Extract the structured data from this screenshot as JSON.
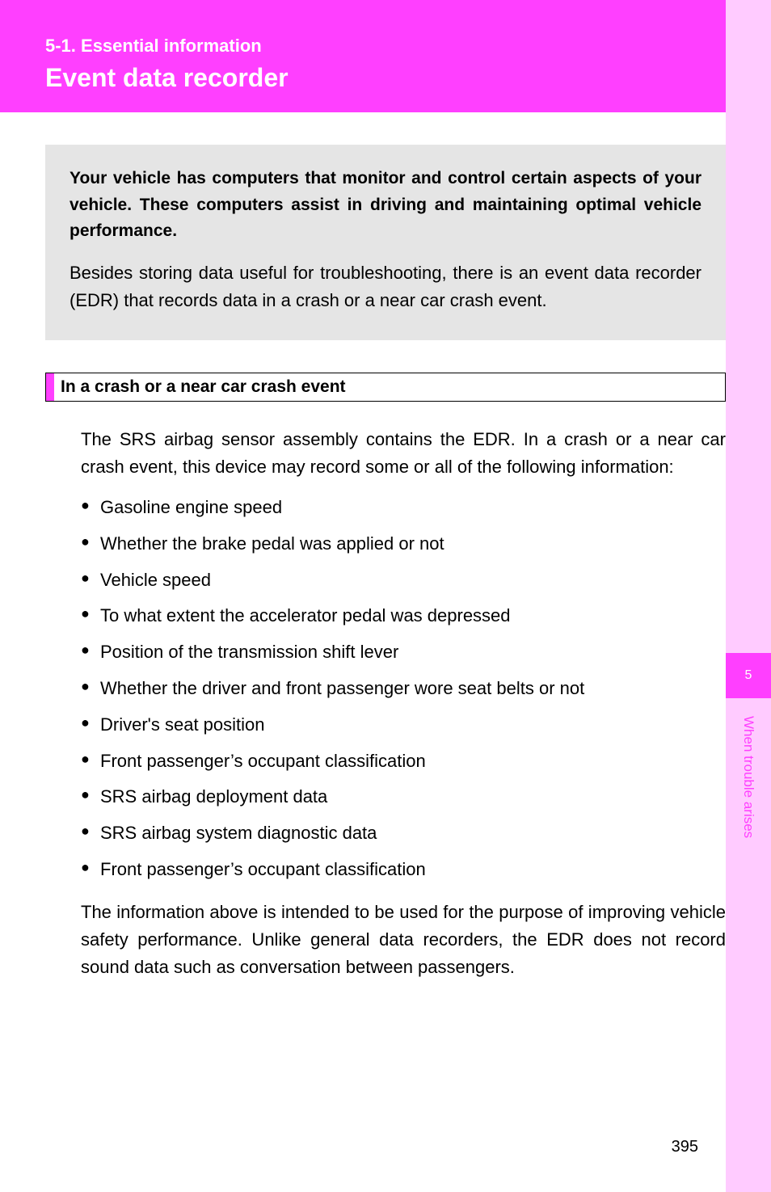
{
  "header": {
    "breadcrumb": "5-1. Essential information",
    "title": "Event data recorder"
  },
  "intro": {
    "bold": "Your vehicle has computers that monitor and control certain aspects of your vehicle. These computers assist in driving and maintaining optimal vehicle performance.",
    "regular": "Besides storing data useful for troubleshooting, there is an event data recorder (EDR) that records data in a crash or a near car crash event."
  },
  "section": {
    "title": "In a crash or a near car crash event",
    "lead": "The SRS airbag sensor assembly contains the EDR. In a crash or a near car crash event, this device may record some or all of the following information:",
    "bullets": [
      "Gasoline engine speed",
      "Whether the brake pedal was applied or not",
      "Vehicle speed",
      "To what extent the accelerator pedal was depressed",
      "Position of the transmission shift lever",
      "Whether the driver and front passenger wore seat belts or not",
      "Driver's seat position",
      "Front passenger’s occupant classification",
      "SRS airbag deployment data",
      "SRS airbag system diagnostic data",
      "Front passenger’s occupant classification"
    ],
    "tail": "The information above is intended to be used for the purpose of improving vehicle safety performance. Unlike general data recorders, the EDR does not record sound data such as conversation between passengers."
  },
  "sidebar": {
    "chapter_number": "5",
    "chapter_label": "When trouble arises"
  },
  "page_number": "395",
  "colors": {
    "header_bg": "#ff3fff",
    "sidebar_bg": "#ffcbff",
    "intro_bg": "#e5e5e5",
    "text": "#000000",
    "header_text": "#ffffff"
  }
}
